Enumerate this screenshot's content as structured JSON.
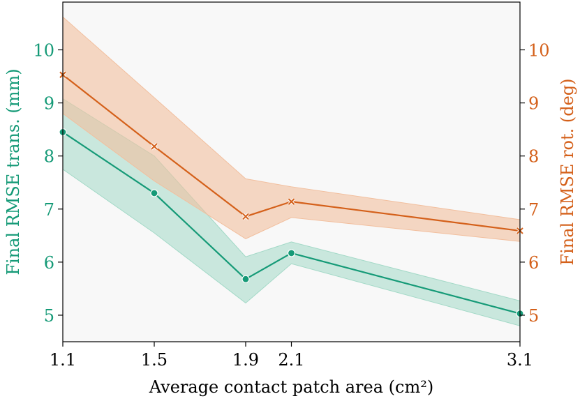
{
  "chart_data": {
    "type": "line",
    "xlabel": "Average contact patch area (cm²)",
    "x": [
      1.1,
      1.5,
      1.9,
      2.1,
      3.1
    ],
    "xticks": [
      "1.1",
      "1.5",
      "1.9",
      "2.1",
      "3.1"
    ],
    "xlim": [
      1.1,
      3.1
    ],
    "left_axis": {
      "label": "Final RMSE trans. (mm)",
      "ylim": [
        4.5,
        10.9
      ],
      "ticks": [
        5,
        6,
        7,
        8,
        9,
        10
      ],
      "color": "#159a77"
    },
    "right_axis": {
      "label": "Final RMSE rot. (deg)",
      "ylim": [
        4.5,
        10.9
      ],
      "ticks": [
        5,
        6,
        7,
        8,
        9,
        10
      ],
      "color": "#d4601a"
    },
    "series": [
      {
        "name": "Final RMSE trans. (mm)",
        "axis": "left",
        "marker": "circle",
        "color": "#159a77",
        "band_color": "#a3d9c7",
        "values": [
          8.45,
          7.3,
          5.68,
          6.17,
          5.03
        ],
        "lower": [
          7.75,
          6.55,
          5.23,
          5.97,
          4.8
        ],
        "upper": [
          9.08,
          8.0,
          6.1,
          6.38,
          5.27
        ]
      },
      {
        "name": "Final RMSE rot. (deg)",
        "axis": "right",
        "marker": "x",
        "color": "#d4601a",
        "band_color": "#f2bf9e",
        "values": [
          9.53,
          8.18,
          6.86,
          7.14,
          6.59
        ],
        "lower": [
          8.8,
          7.53,
          6.44,
          6.84,
          6.39
        ],
        "upper": [
          10.62,
          9.1,
          7.57,
          7.42,
          6.8
        ]
      }
    ]
  }
}
